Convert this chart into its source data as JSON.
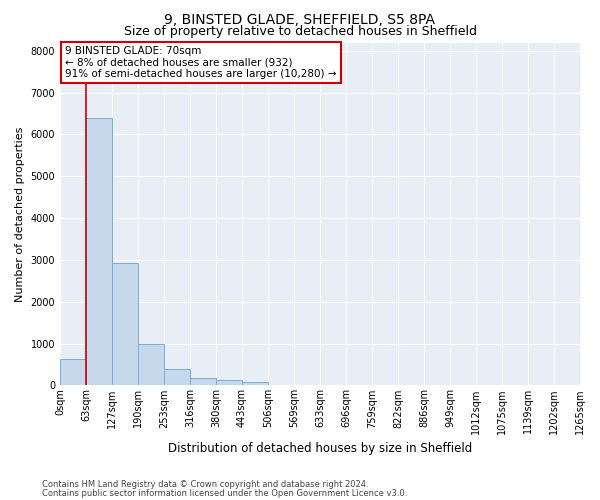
{
  "title1": "9, BINSTED GLADE, SHEFFIELD, S5 8PA",
  "title2": "Size of property relative to detached houses in Sheffield",
  "xlabel": "Distribution of detached houses by size in Sheffield",
  "ylabel": "Number of detached properties",
  "bar_values": [
    620,
    6400,
    2920,
    1000,
    380,
    175,
    120,
    90,
    0,
    0,
    0,
    0,
    0,
    0,
    0,
    0,
    0,
    0,
    0,
    0
  ],
  "bar_labels": [
    "0sqm",
    "63sqm",
    "127sqm",
    "190sqm",
    "253sqm",
    "316sqm",
    "380sqm",
    "443sqm",
    "506sqm",
    "569sqm",
    "633sqm",
    "696sqm",
    "759sqm",
    "822sqm",
    "886sqm",
    "949sqm",
    "1012sqm",
    "1075sqm",
    "1139sqm",
    "1202sqm",
    "1265sqm"
  ],
  "bar_color": "#c5d8ec",
  "bar_edge_color": "#7aaed4",
  "vline_x": 1,
  "vline_color": "#cc0000",
  "annotation_box_text": "9 BINSTED GLADE: 70sqm\n← 8% of detached houses are smaller (932)\n91% of semi-detached houses are larger (10,280) →",
  "annotation_box_color": "#ffffff",
  "annotation_box_edge_color": "#cc0000",
  "ylim": [
    0,
    8200
  ],
  "yticks": [
    0,
    1000,
    2000,
    3000,
    4000,
    5000,
    6000,
    7000,
    8000
  ],
  "background_color": "#e8eef5",
  "grid_color": "#ffffff",
  "footer1": "Contains HM Land Registry data © Crown copyright and database right 2024.",
  "footer2": "Contains public sector information licensed under the Open Government Licence v3.0.",
  "title1_fontsize": 10,
  "title2_fontsize": 9,
  "xlabel_fontsize": 8.5,
  "ylabel_fontsize": 8,
  "tick_fontsize": 7,
  "footer_fontsize": 6
}
